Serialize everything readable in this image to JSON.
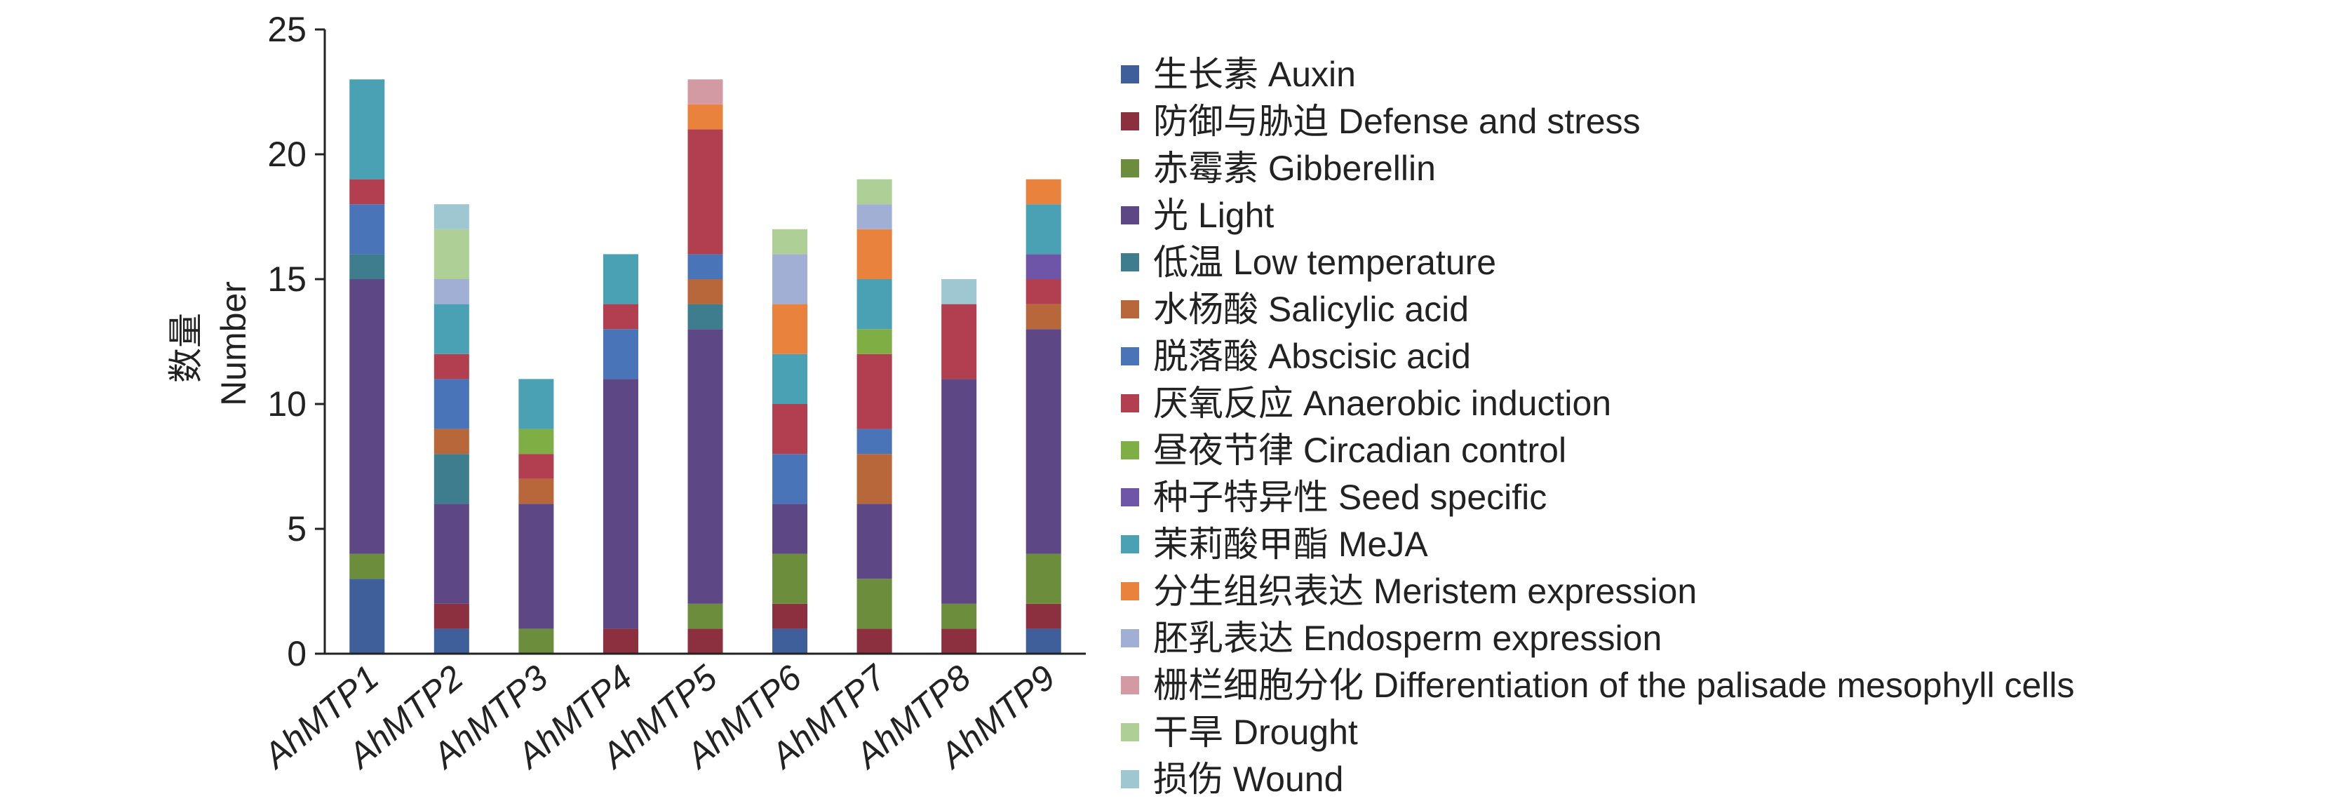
{
  "chart_data": {
    "type": "bar",
    "stacked": true,
    "ylabel": [
      "数量",
      "Number"
    ],
    "ylim": [
      0,
      25
    ],
    "yticks": [
      0,
      5,
      10,
      15,
      20,
      25
    ],
    "categories": [
      "AhMTP1",
      "AhMTP2",
      "AhMTP3",
      "AhMTP4",
      "AhMTP5",
      "AhMTP6",
      "AhMTP7",
      "AhMTP8",
      "AhMTP9"
    ],
    "legend_position": "right",
    "series": [
      {
        "name": "生长素 Auxin",
        "color": "#3f5f9a",
        "values": [
          3,
          1,
          0,
          0,
          0,
          1,
          0,
          0,
          1
        ]
      },
      {
        "name": "防御与胁迫 Defense and stress",
        "color": "#8c2f3e",
        "values": [
          0,
          1,
          0,
          1,
          1,
          1,
          1,
          1,
          1
        ]
      },
      {
        "name": "赤霉素 Gibberellin",
        "color": "#6b8d3c",
        "values": [
          1,
          0,
          1,
          0,
          1,
          2,
          2,
          1,
          2
        ]
      },
      {
        "name": "光 Light",
        "color": "#5d4784",
        "values": [
          11,
          4,
          5,
          10,
          11,
          2,
          3,
          9,
          9
        ]
      },
      {
        "name": "低温 Low temperature",
        "color": "#3e7d8e",
        "values": [
          1,
          2,
          0,
          0,
          1,
          0,
          0,
          0,
          0
        ]
      },
      {
        "name": "水杨酸 Salicylic acid",
        "color": "#b8673a",
        "values": [
          0,
          1,
          1,
          0,
          1,
          0,
          2,
          0,
          1
        ]
      },
      {
        "name": "脱落酸 Abscisic acid",
        "color": "#4a74b8",
        "values": [
          2,
          2,
          0,
          2,
          1,
          2,
          1,
          0,
          0
        ]
      },
      {
        "name": "厌氧反应 Anaerobic induction",
        "color": "#b23f4f",
        "values": [
          1,
          1,
          1,
          1,
          5,
          2,
          3,
          3,
          1
        ]
      },
      {
        "name": "昼夜节律 Circadian control",
        "color": "#7fae45",
        "values": [
          0,
          0,
          1,
          0,
          0,
          0,
          1,
          0,
          0
        ]
      },
      {
        "name": "种子特异性 Seed specific",
        "color": "#6e55a8",
        "values": [
          0,
          0,
          0,
          0,
          0,
          0,
          0,
          0,
          1
        ]
      },
      {
        "name": "茉莉酸甲酯 MeJA",
        "color": "#4aa1b4",
        "values": [
          4,
          2,
          2,
          2,
          0,
          2,
          2,
          0,
          2
        ]
      },
      {
        "name": "分生组织表达 Meristem expression",
        "color": "#e8823c",
        "values": [
          0,
          0,
          0,
          0,
          1,
          2,
          2,
          0,
          1
        ]
      },
      {
        "name": "胚乳表达 Endosperm expression",
        "color": "#a2afd4",
        "values": [
          0,
          1,
          0,
          0,
          0,
          2,
          1,
          0,
          0
        ]
      },
      {
        "name": "栅栏细胞分化 Differentiation of the palisade mesophyll cells",
        "color": "#d49aa3",
        "values": [
          0,
          0,
          0,
          0,
          1,
          0,
          0,
          0,
          0
        ]
      },
      {
        "name": "干旱 Drought",
        "color": "#aecf95",
        "values": [
          0,
          2,
          0,
          0,
          0,
          1,
          1,
          0,
          0
        ]
      },
      {
        "name": "损伤 Wound",
        "color": "#9ec7d1",
        "values": [
          0,
          1,
          0,
          0,
          0,
          0,
          0,
          1,
          0
        ]
      }
    ]
  }
}
